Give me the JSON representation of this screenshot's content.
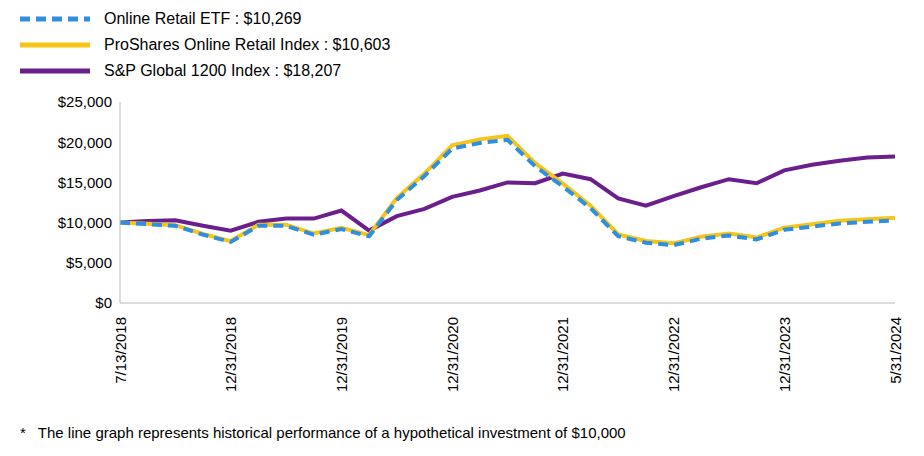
{
  "chart_data": {
    "type": "line",
    "categories": [
      "7/13/2018",
      null,
      null,
      null,
      "12/31/2018",
      null,
      null,
      null,
      "12/31/2019",
      null,
      null,
      null,
      "12/31/2020",
      null,
      null,
      null,
      "12/31/2021",
      null,
      null,
      null,
      "12/31/2022",
      null,
      null,
      null,
      "12/31/2023",
      null,
      null,
      null,
      "5/31/2024"
    ],
    "series": [
      {
        "name": "Online Retail ETF : $10,269",
        "color": "#2e8ee0",
        "line_style": "dashed",
        "values": [
          10000,
          9800,
          9600,
          8500,
          7600,
          9600,
          9600,
          8500,
          9200,
          8300,
          12800,
          15800,
          19200,
          19900,
          20300,
          17000,
          14500,
          11800,
          8300,
          7500,
          7200,
          8000,
          8400,
          7900,
          9100,
          9500,
          9900,
          10100,
          10269
        ]
      },
      {
        "name": "ProShares Online Retail Index : $10,603",
        "color": "#f5c518",
        "line_style": "solid",
        "values": [
          10000,
          9850,
          9680,
          8580,
          7700,
          9720,
          9740,
          8640,
          9360,
          8450,
          13050,
          16100,
          19600,
          20350,
          20800,
          17400,
          14850,
          12100,
          8520,
          7720,
          7420,
          8240,
          8650,
          8140,
          9380,
          9800,
          10220,
          10430,
          10603
        ]
      },
      {
        "name": "S&P Global 1200 Index : $18,207",
        "color": "#6a1f8c",
        "line_style": "solid",
        "values": [
          10000,
          10200,
          10300,
          9600,
          9000,
          10100,
          10500,
          10500,
          11500,
          9000,
          10800,
          11700,
          13200,
          14000,
          15000,
          14900,
          16100,
          15400,
          13000,
          12100,
          13300,
          14400,
          15400,
          14900,
          16500,
          17200,
          17700,
          18100,
          18207
        ]
      }
    ],
    "ylim": [
      0,
      25000
    ],
    "yticks": [
      {
        "value": 0,
        "label": "$0"
      },
      {
        "value": 5000,
        "label": "$5,000"
      },
      {
        "value": 10000,
        "label": "$10,000"
      },
      {
        "value": 15000,
        "label": "$15,000"
      },
      {
        "value": 20000,
        "label": "$20,000"
      },
      {
        "value": 25000,
        "label": "$25,000"
      }
    ],
    "grid": false,
    "legend": "top-left",
    "annotations": [
      "*",
      "The line graph represents historical performance of a hypothetical investment of $10,000"
    ]
  }
}
